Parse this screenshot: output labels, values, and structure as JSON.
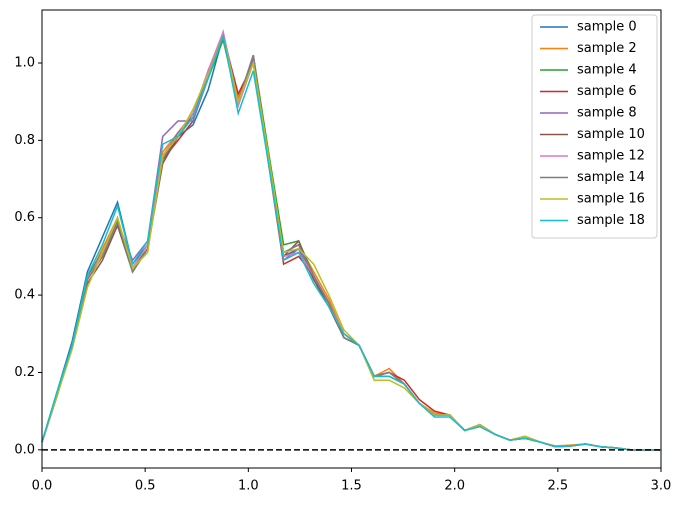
{
  "chart_data": {
    "type": "line",
    "x": [
      0,
      0.073,
      0.146,
      0.22,
      0.293,
      0.366,
      0.439,
      0.512,
      0.585,
      0.659,
      0.732,
      0.805,
      0.878,
      0.951,
      1.024,
      1.098,
      1.171,
      1.244,
      1.317,
      1.39,
      1.463,
      1.537,
      1.61,
      1.683,
      1.756,
      1.829,
      1.902,
      1.976,
      2.049,
      2.122,
      2.195,
      2.268,
      2.341,
      2.415,
      2.488,
      2.561,
      2.634,
      2.707,
      2.78,
      2.854,
      2.927,
      3.0
    ],
    "series": [
      {
        "name": "sample 0",
        "color": "#1f77b4",
        "values": [
          0.02,
          0.15,
          0.28,
          0.46,
          0.55,
          0.64,
          0.48,
          0.53,
          0.76,
          0.81,
          0.84,
          0.93,
          1.07,
          0.9,
          1.01,
          0.75,
          0.5,
          0.52,
          0.44,
          0.38,
          0.3,
          0.27,
          0.19,
          0.2,
          0.17,
          0.12,
          0.09,
          0.09,
          0.05,
          0.065,
          0.04,
          0.025,
          0.03,
          0.02,
          0.008,
          0.01,
          0.015,
          0.008,
          0.005,
          0.0,
          0.0,
          0.0
        ]
      },
      {
        "name": "sample 2",
        "color": "#ff7f0e",
        "values": [
          0.02,
          0.14,
          0.27,
          0.44,
          0.52,
          0.6,
          0.47,
          0.52,
          0.77,
          0.82,
          0.86,
          0.97,
          1.07,
          0.91,
          1.0,
          0.76,
          0.51,
          0.53,
          0.46,
          0.39,
          0.3,
          0.27,
          0.19,
          0.21,
          0.17,
          0.12,
          0.095,
          0.09,
          0.05,
          0.06,
          0.04,
          0.025,
          0.035,
          0.02,
          0.01,
          0.012,
          0.015,
          0.008,
          0.005,
          0.0,
          0.0,
          0.0
        ]
      },
      {
        "name": "sample 4",
        "color": "#2ca02c",
        "values": [
          0.02,
          0.14,
          0.27,
          0.45,
          0.51,
          0.59,
          0.47,
          0.52,
          0.75,
          0.81,
          0.86,
          0.96,
          1.06,
          0.89,
          1.02,
          0.77,
          0.53,
          0.54,
          0.45,
          0.38,
          0.29,
          0.27,
          0.19,
          0.19,
          0.17,
          0.12,
          0.09,
          0.09,
          0.05,
          0.065,
          0.04,
          0.025,
          0.03,
          0.02,
          0.008,
          0.01,
          0.015,
          0.008,
          0.005,
          0.0,
          0.0,
          0.0
        ]
      },
      {
        "name": "sample 6",
        "color": "#d62728",
        "values": [
          0.02,
          0.14,
          0.27,
          0.44,
          0.5,
          0.59,
          0.46,
          0.52,
          0.75,
          0.8,
          0.85,
          0.98,
          1.07,
          0.92,
          1.0,
          0.74,
          0.48,
          0.5,
          0.45,
          0.38,
          0.29,
          0.27,
          0.19,
          0.2,
          0.18,
          0.13,
          0.1,
          0.09,
          0.05,
          0.065,
          0.04,
          0.025,
          0.03,
          0.02,
          0.008,
          0.01,
          0.015,
          0.008,
          0.005,
          0.0,
          0.0,
          0.0
        ]
      },
      {
        "name": "sample 8",
        "color": "#9467bd",
        "values": [
          0.02,
          0.14,
          0.27,
          0.44,
          0.51,
          0.59,
          0.49,
          0.54,
          0.81,
          0.85,
          0.85,
          0.96,
          1.08,
          0.9,
          1.01,
          0.75,
          0.49,
          0.52,
          0.45,
          0.38,
          0.29,
          0.27,
          0.19,
          0.2,
          0.17,
          0.12,
          0.09,
          0.09,
          0.05,
          0.065,
          0.04,
          0.025,
          0.03,
          0.02,
          0.008,
          0.01,
          0.015,
          0.008,
          0.005,
          0.0,
          0.0,
          0.0
        ]
      },
      {
        "name": "sample 10",
        "color": "#8c564b",
        "values": [
          0.02,
          0.14,
          0.27,
          0.43,
          0.49,
          0.58,
          0.46,
          0.52,
          0.74,
          0.81,
          0.87,
          0.97,
          1.07,
          0.9,
          1.02,
          0.74,
          0.5,
          0.54,
          0.44,
          0.37,
          0.29,
          0.27,
          0.19,
          0.2,
          0.17,
          0.12,
          0.09,
          0.09,
          0.05,
          0.065,
          0.04,
          0.025,
          0.03,
          0.02,
          0.008,
          0.01,
          0.015,
          0.008,
          0.005,
          0.0,
          0.0,
          0.0
        ]
      },
      {
        "name": "sample 12",
        "color": "#e377c2",
        "values": [
          0.02,
          0.14,
          0.27,
          0.44,
          0.51,
          0.59,
          0.47,
          0.53,
          0.76,
          0.82,
          0.87,
          0.98,
          1.08,
          0.89,
          1.0,
          0.75,
          0.5,
          0.51,
          0.45,
          0.38,
          0.3,
          0.27,
          0.19,
          0.2,
          0.17,
          0.12,
          0.09,
          0.09,
          0.05,
          0.065,
          0.04,
          0.025,
          0.03,
          0.02,
          0.008,
          0.01,
          0.015,
          0.008,
          0.005,
          0.0,
          0.0,
          0.0
        ]
      },
      {
        "name": "sample 14",
        "color": "#7f7f7f",
        "values": [
          0.02,
          0.14,
          0.27,
          0.44,
          0.5,
          0.59,
          0.46,
          0.52,
          0.75,
          0.82,
          0.86,
          0.97,
          1.07,
          0.9,
          1.02,
          0.75,
          0.51,
          0.53,
          0.45,
          0.38,
          0.29,
          0.27,
          0.19,
          0.2,
          0.17,
          0.12,
          0.09,
          0.09,
          0.05,
          0.065,
          0.04,
          0.025,
          0.03,
          0.02,
          0.008,
          0.01,
          0.015,
          0.008,
          0.005,
          0.0,
          0.0,
          0.0
        ]
      },
      {
        "name": "sample 16",
        "color": "#bcbd22",
        "values": [
          0.02,
          0.14,
          0.26,
          0.42,
          0.51,
          0.6,
          0.47,
          0.51,
          0.76,
          0.81,
          0.88,
          0.97,
          1.07,
          0.9,
          1.0,
          0.76,
          0.51,
          0.52,
          0.48,
          0.4,
          0.31,
          0.27,
          0.18,
          0.18,
          0.16,
          0.12,
          0.09,
          0.09,
          0.05,
          0.065,
          0.04,
          0.025,
          0.035,
          0.02,
          0.008,
          0.01,
          0.015,
          0.008,
          0.005,
          0.0,
          0.0,
          0.0
        ]
      },
      {
        "name": "sample 18",
        "color": "#17becf",
        "values": [
          0.02,
          0.15,
          0.27,
          0.45,
          0.53,
          0.63,
          0.48,
          0.54,
          0.79,
          0.81,
          0.86,
          0.96,
          1.07,
          0.87,
          0.98,
          0.74,
          0.49,
          0.51,
          0.43,
          0.37,
          0.3,
          0.27,
          0.19,
          0.19,
          0.17,
          0.12,
          0.085,
          0.085,
          0.05,
          0.06,
          0.04,
          0.025,
          0.03,
          0.02,
          0.008,
          0.01,
          0.015,
          0.008,
          0.005,
          0.0,
          0.0,
          0.0
        ]
      }
    ],
    "xlim": [
      0,
      3.0
    ],
    "ylim": [
      -0.047,
      1.137
    ],
    "xticks": [
      {
        "value": 0,
        "label": "0.0"
      },
      0.5,
      {
        "value": 1,
        "label": "1.0"
      },
      1.5,
      {
        "value": 2,
        "label": "2.0"
      },
      2.5,
      {
        "value": 3,
        "label": "3.0"
      }
    ],
    "yticks": [
      {
        "value": 0,
        "label": "0.0"
      },
      0.2,
      0.4,
      0.6,
      0.8,
      {
        "value": 1,
        "label": "1.0"
      }
    ],
    "hline": {
      "y": 0,
      "color": "#000000",
      "style": "dashed"
    },
    "legend": "upper right"
  }
}
